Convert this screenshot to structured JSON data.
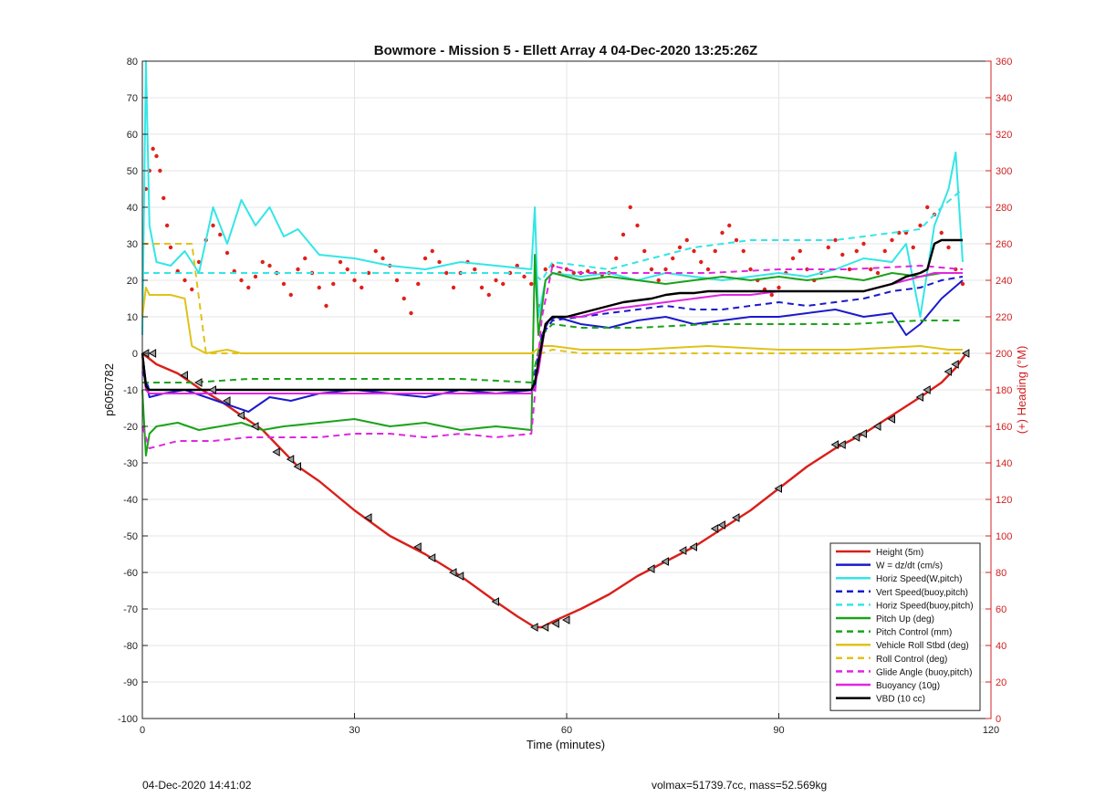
{
  "chart_data": {
    "type": "line",
    "title": "Bowmore - Mission 5 - Ellett Array 4 04-Dec-2020 13:25:26Z",
    "xlabel": "Time (minutes)",
    "ylabel": "p6050782",
    "ylabel_right": "(+) Heading (°M)",
    "xlim": [
      0,
      120
    ],
    "ylim": [
      -100,
      80
    ],
    "ylim_right": [
      0,
      360
    ],
    "xticks": [
      "0",
      "30",
      "60",
      "90",
      "120"
    ],
    "yticks": [
      "-100",
      "-90",
      "-80",
      "-70",
      "-60",
      "-50",
      "-40",
      "-30",
      "-20",
      "-10",
      "0",
      "10",
      "20",
      "30",
      "40",
      "50",
      "60",
      "70",
      "80"
    ],
    "yticks_right": [
      "0",
      "20",
      "40",
      "60",
      "80",
      "100",
      "120",
      "140",
      "160",
      "180",
      "200",
      "220",
      "240",
      "260",
      "280",
      "300",
      "320",
      "340",
      "360"
    ],
    "grid": true,
    "legend_position": "bottom-right",
    "colors": {
      "height": "#d9201a",
      "w": "#1a1acc",
      "cyan": "#33e6e6",
      "green": "#1aa31a",
      "yellow": "#e0c21a",
      "magenta": "#e026e0",
      "black": "#000000",
      "heading": "#e0201a",
      "right_axis": "#d02020"
    },
    "series": [
      {
        "name": "Height (5m)",
        "color": "#d9201a",
        "style": "solid",
        "x": [
          0,
          2,
          5,
          8,
          11,
          14,
          17,
          20,
          22,
          25,
          30,
          35,
          40,
          45,
          50,
          53,
          55.5,
          56.5,
          58,
          62,
          66,
          70,
          74,
          78,
          82,
          86,
          90,
          94,
          98,
          102,
          106,
          110,
          113,
          115,
          116.5
        ],
        "y": [
          0,
          -3,
          -5.5,
          -9.5,
          -13,
          -17,
          -21,
          -27,
          -31,
          -35,
          -43,
          -50,
          -55,
          -61,
          -68,
          -72,
          -75,
          -75,
          -73.5,
          -70,
          -66,
          -61,
          -57,
          -53,
          -48,
          -43,
          -37,
          -31,
          -26,
          -22,
          -17,
          -12,
          -8,
          -4,
          0
        ]
      },
      {
        "name": "W = dz/dt (cm/s)",
        "color": "#1a1acc",
        "style": "solid",
        "x": [
          0,
          0.5,
          1,
          3,
          6,
          9,
          12,
          15,
          18,
          21,
          25,
          30,
          35,
          40,
          45,
          50,
          55.5,
          56.5,
          57.5,
          58.5,
          62,
          66,
          70,
          74,
          78,
          82,
          86,
          90,
          94,
          98,
          102,
          106,
          108,
          110,
          113,
          116
        ],
        "y": [
          0,
          -8,
          -12,
          -11,
          -10,
          -12,
          -14,
          -16,
          -12,
          -13,
          -11,
          -10,
          -11,
          -12,
          -10,
          -11,
          -10,
          5,
          9,
          10,
          8,
          7,
          9,
          10,
          8,
          9,
          10,
          10,
          11,
          12,
          10,
          11,
          5,
          8,
          15,
          20
        ]
      },
      {
        "name": "Horiz Speed(W,pitch)",
        "color": "#33e6e6",
        "style": "solid",
        "x": [
          0,
          0.5,
          1,
          2,
          4,
          6,
          8,
          10,
          12,
          14,
          16,
          18,
          20,
          22,
          25,
          30,
          35,
          40,
          45,
          50,
          55,
          55.5,
          56,
          57,
          58,
          62,
          66,
          70,
          74,
          78,
          82,
          86,
          90,
          94,
          98,
          102,
          106,
          108,
          110,
          112,
          114,
          115,
          116
        ],
        "y": [
          5,
          80,
          35,
          25,
          24,
          28,
          22,
          40,
          30,
          42,
          35,
          40,
          32,
          34,
          27,
          26,
          24,
          23,
          25,
          24,
          23,
          40,
          10,
          20,
          22,
          21,
          22,
          20,
          22,
          21,
          20,
          21,
          22,
          21,
          23,
          26,
          25,
          30,
          10,
          35,
          45,
          55,
          25
        ]
      },
      {
        "name": "Vert Speed(buoy,pitch)",
        "color": "#1a1acc",
        "style": "dashed",
        "x": [
          0,
          1,
          55,
          56.5,
          58,
          62,
          66,
          70,
          74,
          78,
          82,
          86,
          90,
          94,
          98,
          102,
          106,
          110,
          113,
          116
        ],
        "y": [
          -5,
          -10,
          -10,
          5,
          9,
          10,
          11,
          12,
          13,
          12,
          12,
          13,
          14,
          13,
          14,
          15,
          17,
          18,
          20,
          21
        ]
      },
      {
        "name": "Horiz Speed(buoy,pitch)",
        "color": "#33e6e6",
        "style": "dashed",
        "x": [
          0,
          1,
          55,
          56.5,
          58,
          62,
          66,
          70,
          74,
          78,
          82,
          86,
          90,
          94,
          98,
          102,
          106,
          110,
          113,
          116
        ],
        "y": [
          22,
          22,
          22,
          20,
          25,
          24,
          23,
          25,
          27,
          29,
          30,
          31,
          31,
          31,
          31,
          32,
          33,
          34,
          40,
          45
        ]
      },
      {
        "name": "Pitch Up (deg)",
        "color": "#1aa31a",
        "style": "solid",
        "x": [
          0,
          0.5,
          1,
          2,
          5,
          8,
          11,
          14,
          17,
          20,
          25,
          30,
          35,
          40,
          45,
          50,
          55,
          55.5,
          56,
          57,
          58,
          62,
          66,
          70,
          74,
          78,
          82,
          86,
          90,
          94,
          98,
          102,
          106,
          110,
          113,
          116
        ],
        "y": [
          -10,
          -28,
          -22,
          -20,
          -19,
          -21,
          -20,
          -19,
          -21,
          -20,
          -19,
          -18,
          -20,
          -19,
          -21,
          -20,
          -21,
          27,
          5,
          20,
          22,
          20,
          21,
          20,
          19,
          20,
          21,
          20,
          21,
          20,
          21,
          20,
          22,
          21,
          22,
          22
        ]
      },
      {
        "name": "Pitch Control (mm)",
        "color": "#1aa31a",
        "style": "dashed",
        "x": [
          0,
          1,
          7,
          15,
          25,
          35,
          45,
          55,
          56.5,
          58,
          62,
          70,
          80,
          90,
          100,
          110,
          116
        ],
        "y": [
          -8,
          -8,
          -8,
          -7,
          -7,
          -7,
          -7,
          -8,
          5,
          8,
          7,
          7,
          8,
          8,
          8,
          9,
          9
        ]
      },
      {
        "name": "Vehicle Roll Stbd (deg)",
        "color": "#e0c21a",
        "style": "solid",
        "x": [
          0,
          0.5,
          1,
          4,
          6,
          7,
          9,
          12,
          14,
          16,
          18,
          20,
          25,
          30,
          35,
          40,
          45,
          50,
          55,
          56.5,
          58,
          62,
          70,
          80,
          90,
          100,
          110,
          114,
          116
        ],
        "y": [
          10,
          18,
          16,
          16,
          15,
          2,
          0,
          1,
          0,
          0,
          0,
          0,
          0,
          0,
          0,
          0,
          0,
          0,
          0,
          2,
          2,
          1,
          1,
          2,
          1,
          1,
          2,
          1,
          1
        ]
      },
      {
        "name": "Roll Control (deg)",
        "color": "#e0c21a",
        "style": "dashed",
        "x": [
          0,
          1,
          5,
          7,
          9,
          15,
          25,
          35,
          45,
          55,
          56.5,
          58,
          62,
          70,
          80,
          90,
          100,
          110,
          116
        ],
        "y": [
          30,
          30,
          30,
          30,
          0,
          0,
          0,
          0,
          0,
          0,
          0,
          1,
          0,
          0,
          0,
          0,
          0,
          0,
          0
        ]
      },
      {
        "name": "Glide Angle (buoy,pitch)",
        "color": "#e026e0",
        "style": "dashed",
        "x": [
          0,
          1,
          5,
          10,
          15,
          20,
          25,
          30,
          35,
          40,
          45,
          50,
          55,
          56.5,
          58,
          62,
          70,
          80,
          90,
          100,
          110,
          116
        ],
        "y": [
          -20,
          -26,
          -24,
          -24,
          -23,
          -23,
          -23,
          -22,
          -22,
          -23,
          -22,
          -23,
          -22,
          10,
          24,
          22,
          22,
          22,
          23,
          23,
          24,
          23
        ]
      },
      {
        "name": "Buoyancy (10g)",
        "color": "#e026e0",
        "style": "solid",
        "x": [
          0,
          0.5,
          1,
          55,
          56,
          57,
          58,
          62,
          66,
          70,
          74,
          78,
          82,
          86,
          90,
          94,
          98,
          102,
          106,
          110,
          112,
          116
        ],
        "y": [
          -1,
          -10,
          -11,
          -11,
          -5,
          8,
          10,
          10,
          12,
          13,
          14,
          15,
          16,
          16,
          17,
          17,
          17,
          17,
          19,
          21,
          22,
          22
        ]
      },
      {
        "name": "VBD (10 cc)",
        "color": "#000000",
        "style": "solid",
        "x": [
          0,
          0.5,
          1,
          55,
          55.5,
          57,
          58,
          60,
          62,
          64,
          66,
          68,
          70,
          72,
          74,
          76,
          78,
          80,
          84,
          88,
          92,
          96,
          102,
          104,
          106,
          108,
          110,
          111,
          112,
          113,
          115,
          116
        ],
        "y": [
          0,
          -9,
          -10,
          -10,
          -8,
          8,
          10,
          10,
          11,
          12,
          13,
          14,
          14.5,
          15,
          16,
          16.5,
          16.5,
          17,
          17,
          17,
          17,
          17,
          17,
          18,
          19,
          21,
          22,
          23,
          30,
          31,
          31,
          31
        ]
      }
    ],
    "heading_points": {
      "name": "(+) Heading (°M)",
      "color": "#e0201a",
      "x": [
        0.5,
        1,
        1.5,
        2,
        2.5,
        3,
        3.5,
        4,
        5,
        6,
        7,
        8,
        9,
        10,
        11,
        12,
        13,
        14,
        15,
        16,
        17,
        18,
        19,
        20,
        21,
        22,
        23,
        24,
        25,
        26,
        27,
        28,
        29,
        30,
        31,
        32,
        33,
        34,
        35,
        36,
        37,
        38,
        39,
        40,
        41,
        42,
        43,
        44,
        45,
        46,
        47,
        48,
        49,
        50,
        51,
        52,
        53,
        54,
        55,
        56,
        57,
        58,
        59,
        60,
        61,
        62,
        63,
        64,
        65,
        66,
        67,
        68,
        69,
        70,
        71,
        72,
        73,
        74,
        75,
        76,
        77,
        78,
        79,
        80,
        81,
        82,
        83,
        84,
        85,
        86,
        87,
        88,
        89,
        90,
        91,
        92,
        93,
        94,
        95,
        96,
        97,
        98,
        99,
        100,
        101,
        102,
        103,
        104,
        105,
        106,
        107,
        108,
        109,
        110,
        111,
        112,
        113,
        114,
        115,
        116
      ],
      "y": [
        290,
        300,
        312,
        308,
        300,
        285,
        270,
        258,
        245,
        240,
        235,
        250,
        262,
        270,
        265,
        255,
        245,
        240,
        236,
        242,
        250,
        248,
        244,
        238,
        232,
        246,
        252,
        244,
        236,
        226,
        238,
        250,
        246,
        240,
        236,
        244,
        256,
        252,
        248,
        240,
        230,
        222,
        238,
        252,
        256,
        250,
        244,
        236,
        244,
        250,
        246,
        236,
        232,
        240,
        238,
        244,
        248,
        242,
        238,
        226,
        246,
        248,
        244,
        246,
        244,
        244,
        245,
        244,
        243,
        244,
        252,
        265,
        280,
        270,
        256,
        246,
        240,
        246,
        252,
        258,
        262,
        256,
        250,
        246,
        256,
        266,
        270,
        262,
        256,
        246,
        240,
        235,
        232,
        236,
        244,
        252,
        256,
        246,
        240,
        244,
        258,
        262,
        254,
        246,
        256,
        260,
        246,
        244,
        256,
        262,
        266,
        266,
        258,
        270,
        280,
        276,
        266,
        258,
        246,
        238
      ]
    },
    "dive_markers": {
      "x": [
        0.5,
        1.5,
        6,
        8,
        10,
        12,
        14,
        16,
        19,
        21,
        22,
        32,
        39,
        41,
        44,
        45,
        50,
        55.5,
        57,
        58.5,
        60,
        72,
        74,
        76.5,
        78,
        81,
        82,
        84,
        90,
        98,
        99,
        101,
        102,
        104,
        106,
        110,
        111,
        114,
        115,
        116.5
      ],
      "y": [
        0,
        0,
        -6,
        -8,
        -10,
        -13,
        -17,
        -20,
        -27,
        -29,
        -31,
        -45,
        -53,
        -56,
        -60,
        -61,
        -68,
        -75,
        -75,
        -74,
        -73,
        -59,
        -57,
        -54,
        -53,
        -48,
        -47,
        -45,
        -37,
        -25,
        -25,
        -23,
        -22,
        -20,
        -18,
        -12,
        -10,
        -5,
        -3,
        0
      ]
    }
  },
  "footer": {
    "timestamp": "04-Dec-2020 14:41:02",
    "params": "volmax=51739.7cc, mass=52.569kg"
  }
}
